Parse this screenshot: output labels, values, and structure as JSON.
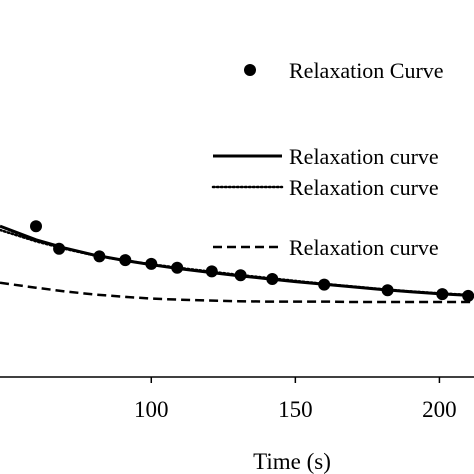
{
  "chart_data": {
    "type": "line",
    "title": "",
    "xlabel": "Time (s)",
    "ylabel": "",
    "xlim": [
      47.5,
      212
    ],
    "ylim": [
      0,
      1
    ],
    "grid": false,
    "x_ticks": [
      100,
      150,
      200
    ],
    "x_tick_labels": [
      "100",
      "150",
      "200"
    ],
    "series": [
      {
        "name": "Relaxation Curve",
        "style": "markers",
        "x": [
          60,
          68,
          82,
          91,
          100,
          109,
          121,
          131,
          142,
          160,
          182,
          201,
          210
        ],
        "y": [
          0.4,
          0.34,
          0.32,
          0.31,
          0.3,
          0.29,
          0.28,
          0.27,
          0.26,
          0.245,
          0.23,
          0.22,
          0.215
        ]
      },
      {
        "name": "Relaxation curve",
        "style": "solid",
        "x": [
          47.5,
          60,
          70,
          80,
          90,
          100,
          110,
          120,
          130,
          140,
          150,
          160,
          170,
          180,
          190,
          200,
          212
        ],
        "y": [
          0.4,
          0.364,
          0.342,
          0.324,
          0.31,
          0.298,
          0.287,
          0.278,
          0.269,
          0.261,
          0.253,
          0.246,
          0.239,
          0.232,
          0.226,
          0.221,
          0.216
        ]
      },
      {
        "name": "Relaxation curve",
        "style": "dotted",
        "x": [
          47.5,
          60,
          70,
          80,
          90,
          100,
          110,
          120,
          130,
          140,
          150,
          160,
          170,
          180,
          190,
          200,
          212
        ],
        "y": [
          0.39,
          0.36,
          0.34,
          0.323,
          0.31,
          0.299,
          0.289,
          0.28,
          0.271,
          0.263,
          0.255,
          0.247,
          0.24,
          0.233,
          0.227,
          0.222,
          0.217
        ]
      },
      {
        "name": "Relaxation curve",
        "style": "dashed",
        "x": [
          47.5,
          60,
          70,
          80,
          90,
          100,
          110,
          120,
          130,
          140,
          150,
          160,
          170,
          180,
          190,
          200,
          212
        ],
        "y": [
          0.25,
          0.237,
          0.227,
          0.219,
          0.213,
          0.208,
          0.205,
          0.203,
          0.201,
          0.2,
          0.2,
          0.2,
          0.199,
          0.199,
          0.199,
          0.199,
          0.199
        ]
      }
    ],
    "legend": {
      "placement": "top-right",
      "entries": [
        "Relaxation Curve",
        "Relaxation curve",
        "Relaxation curve",
        "Relaxation curve"
      ]
    },
    "colors": {
      "line": "#000000",
      "background": "#ffffff"
    }
  }
}
